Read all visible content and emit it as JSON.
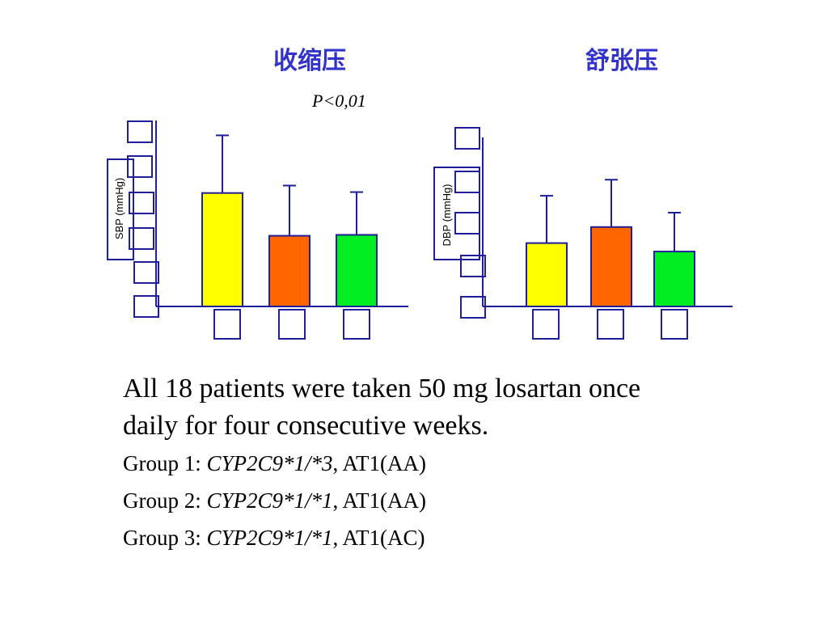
{
  "chart_data": [
    {
      "type": "bar",
      "title": "收缩压",
      "ylabel": "SBP (mmHg)",
      "annotation": "P<0,01",
      "ylim": [
        0,
        100
      ],
      "series": [
        {
          "values": [
            61,
            38,
            38.5
          ],
          "errors": [
            31,
            27,
            23
          ]
        }
      ],
      "colors": [
        "#ffff00",
        "#ff6600",
        "#00ee22"
      ]
    },
    {
      "type": "bar",
      "title": "舒张压",
      "ylabel": "DBP (mmHg)",
      "ylim": [
        0,
        100
      ],
      "series": [
        {
          "values": [
            37.5,
            47,
            32.5
          ],
          "errors": [
            28,
            28,
            23
          ]
        }
      ],
      "colors": [
        "#ffff00",
        "#ff6600",
        "#00ee22"
      ]
    }
  ],
  "text": {
    "caption_line1": "All 18 patients were taken 50 mg losartan once",
    "caption_line2": "daily for four consecutive weeks.",
    "groups": [
      {
        "prefix": "Group 1: ",
        "genotype": "CYP2C9*1/*3",
        "suffix": ", AT1(AA)"
      },
      {
        "prefix": "Group 2: ",
        "genotype": "CYP2C9*1/*1",
        "suffix": ", AT1(AA)"
      },
      {
        "prefix": "Group 3: ",
        "genotype": "CYP2C9*1/*1",
        "suffix": ", AT1(AC)"
      }
    ]
  }
}
